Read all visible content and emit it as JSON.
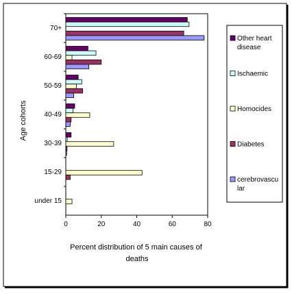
{
  "chart_data": {
    "type": "bar",
    "orientation": "horizontal",
    "title": "",
    "xlabel": "Percent distribution of 5 main causes of deaths",
    "ylabel": "Age cohorts",
    "xlim": [
      0,
      80
    ],
    "xticks": [
      0,
      20,
      40,
      60,
      80
    ],
    "grid": false,
    "legend_position": "right",
    "categories": [
      "70+",
      "60-69",
      "50-59",
      "40-49",
      "30-39",
      "15-29",
      "under 15"
    ],
    "series": [
      {
        "name": "Other heart disease",
        "color": "#660066",
        "values": [
          68.5,
          12.5,
          7,
          5,
          3,
          0,
          0
        ]
      },
      {
        "name": "Ischaemic",
        "color": "#ccffff",
        "values": [
          69.5,
          17,
          9,
          4,
          0.8,
          0,
          0
        ]
      },
      {
        "name": "Homocides",
        "color": "#ffffcc",
        "values": [
          0,
          3.5,
          6,
          13.5,
          27,
          43,
          3.5
        ]
      },
      {
        "name": "Diabetes",
        "color": "#993366",
        "values": [
          66.5,
          20,
          9.5,
          3,
          0.7,
          2.5,
          0
        ]
      },
      {
        "name": "cerebrovascular",
        "color": "#9999ff",
        "values": [
          78,
          13,
          4.5,
          2.5,
          0.5,
          0,
          0
        ]
      }
    ],
    "legend_labels": [
      [
        "Other heart",
        "disease"
      ],
      [
        "Ischaemic"
      ],
      [
        "Homocides"
      ],
      [
        "Diabetes"
      ],
      [
        "cerebrovascu",
        "lar"
      ]
    ]
  }
}
